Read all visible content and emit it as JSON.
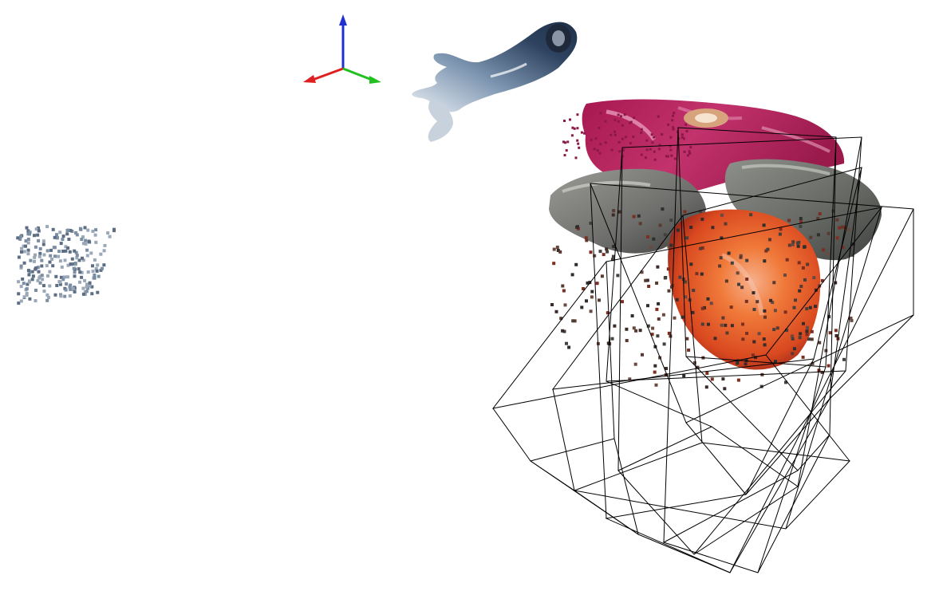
{
  "viewer": {
    "background": "#ffffff",
    "axes_colors": {
      "x": "#e02020",
      "y": "#20c020",
      "z": "#2030d0"
    },
    "wireframe_color": "#000000",
    "objects": [
      {
        "name": "gripper",
        "colors": [
          "#2c3e57",
          "#6f8aa8",
          "#c9d4e0",
          "#f2f2f2"
        ]
      },
      {
        "name": "pink-cloth",
        "colors": [
          "#b81f5e",
          "#8c1848",
          "#e88fb2"
        ]
      },
      {
        "name": "gray-stone-left",
        "colors": [
          "#6f7070",
          "#a9a9a5",
          "#3c3d3b"
        ]
      },
      {
        "name": "gray-stone-right",
        "colors": [
          "#6b6e6a",
          "#a2a49c",
          "#414441"
        ]
      },
      {
        "name": "orange-object",
        "colors": [
          "#f06b21",
          "#e04d1f",
          "#f7a27b",
          "#a92a1e"
        ]
      },
      {
        "name": "distant-patch",
        "colors": [
          "#7c8ea3",
          "#5d6e84",
          "#9aa8b8"
        ]
      }
    ]
  }
}
